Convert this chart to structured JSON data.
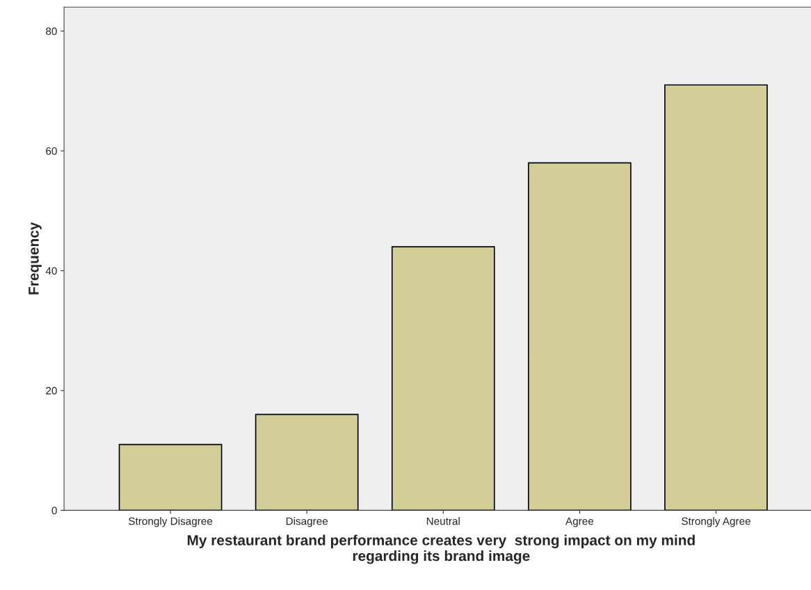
{
  "chart_data": {
    "type": "bar",
    "xlabel": "My restaurant brand performance creates very  strong impact on my mind\nregarding its brand image",
    "ylabel": "Frequency",
    "categories": [
      "Strongly Disagree",
      "Disagree",
      "Neutral",
      "Agree",
      "Strongly Agree"
    ],
    "values": [
      11,
      16,
      44,
      58,
      71
    ],
    "color": "#d3ce97",
    "ylim": [
      0,
      84
    ],
    "yticks": [
      0,
      20,
      40,
      60,
      80
    ],
    "grid": false,
    "legend": false
  }
}
